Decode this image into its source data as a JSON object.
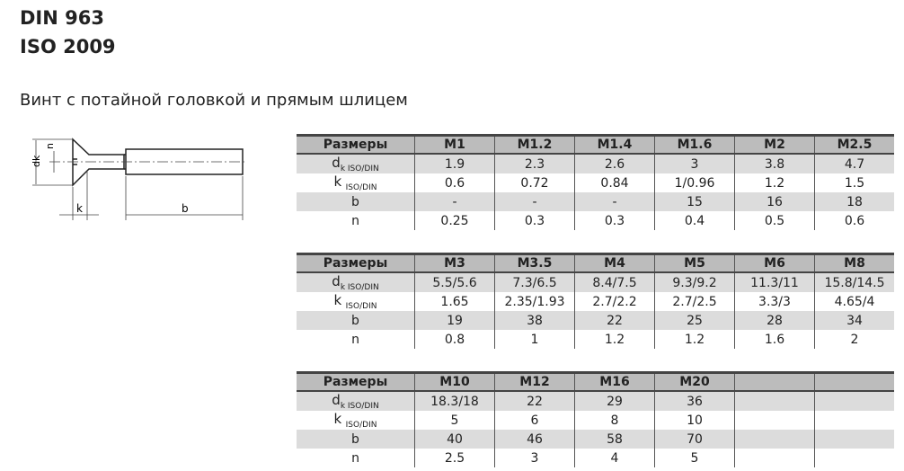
{
  "header": {
    "line1": "DIN 963",
    "line2": "ISO 2009",
    "subtitle": "Винт с потайной головкой и прямым шлицем"
  },
  "drawing": {
    "labels": {
      "dk": "dk",
      "n": "n",
      "k": "k",
      "b": "b"
    }
  },
  "row_labels": {
    "sizes": "Размеры",
    "dk": "d",
    "dk_sub": "k ISO/DIN",
    "k": "k",
    "k_sub": "ISO/DIN",
    "b": "b",
    "n": "n"
  },
  "tables": [
    {
      "sizes": [
        "M1",
        "M1.2",
        "M1.4",
        "M1.6",
        "M2",
        "M2.5"
      ],
      "dk": [
        "1.9",
        "2.3",
        "2.6",
        "3",
        "3.8",
        "4.7"
      ],
      "k": [
        "0.6",
        "0.72",
        "0.84",
        "1/0.96",
        "1.2",
        "1.5"
      ],
      "b": [
        "-",
        "-",
        "-",
        "15",
        "16",
        "18"
      ],
      "n": [
        "0.25",
        "0.3",
        "0.3",
        "0.4",
        "0.5",
        "0.6"
      ]
    },
    {
      "sizes": [
        "M3",
        "M3.5",
        "M4",
        "M5",
        "M6",
        "M8"
      ],
      "dk": [
        "5.5/5.6",
        "7.3/6.5",
        "8.4/7.5",
        "9.3/9.2",
        "11.3/11",
        "15.8/14.5"
      ],
      "k": [
        "1.65",
        "2.35/1.93",
        "2.7/2.2",
        "2.7/2.5",
        "3.3/3",
        "4.65/4"
      ],
      "b": [
        "19",
        "38",
        "22",
        "25",
        "28",
        "34"
      ],
      "n": [
        "0.8",
        "1",
        "1.2",
        "1.2",
        "1.6",
        "2"
      ]
    },
    {
      "sizes": [
        "M10",
        "M12",
        "M16",
        "M20",
        "",
        ""
      ],
      "dk": [
        "18.3/18",
        "22",
        "29",
        "36",
        "",
        ""
      ],
      "k": [
        "5",
        "6",
        "8",
        "10",
        "",
        ""
      ],
      "b": [
        "40",
        "46",
        "58",
        "70",
        "",
        ""
      ],
      "n": [
        "2.5",
        "3",
        "4",
        "5",
        "",
        ""
      ]
    }
  ]
}
